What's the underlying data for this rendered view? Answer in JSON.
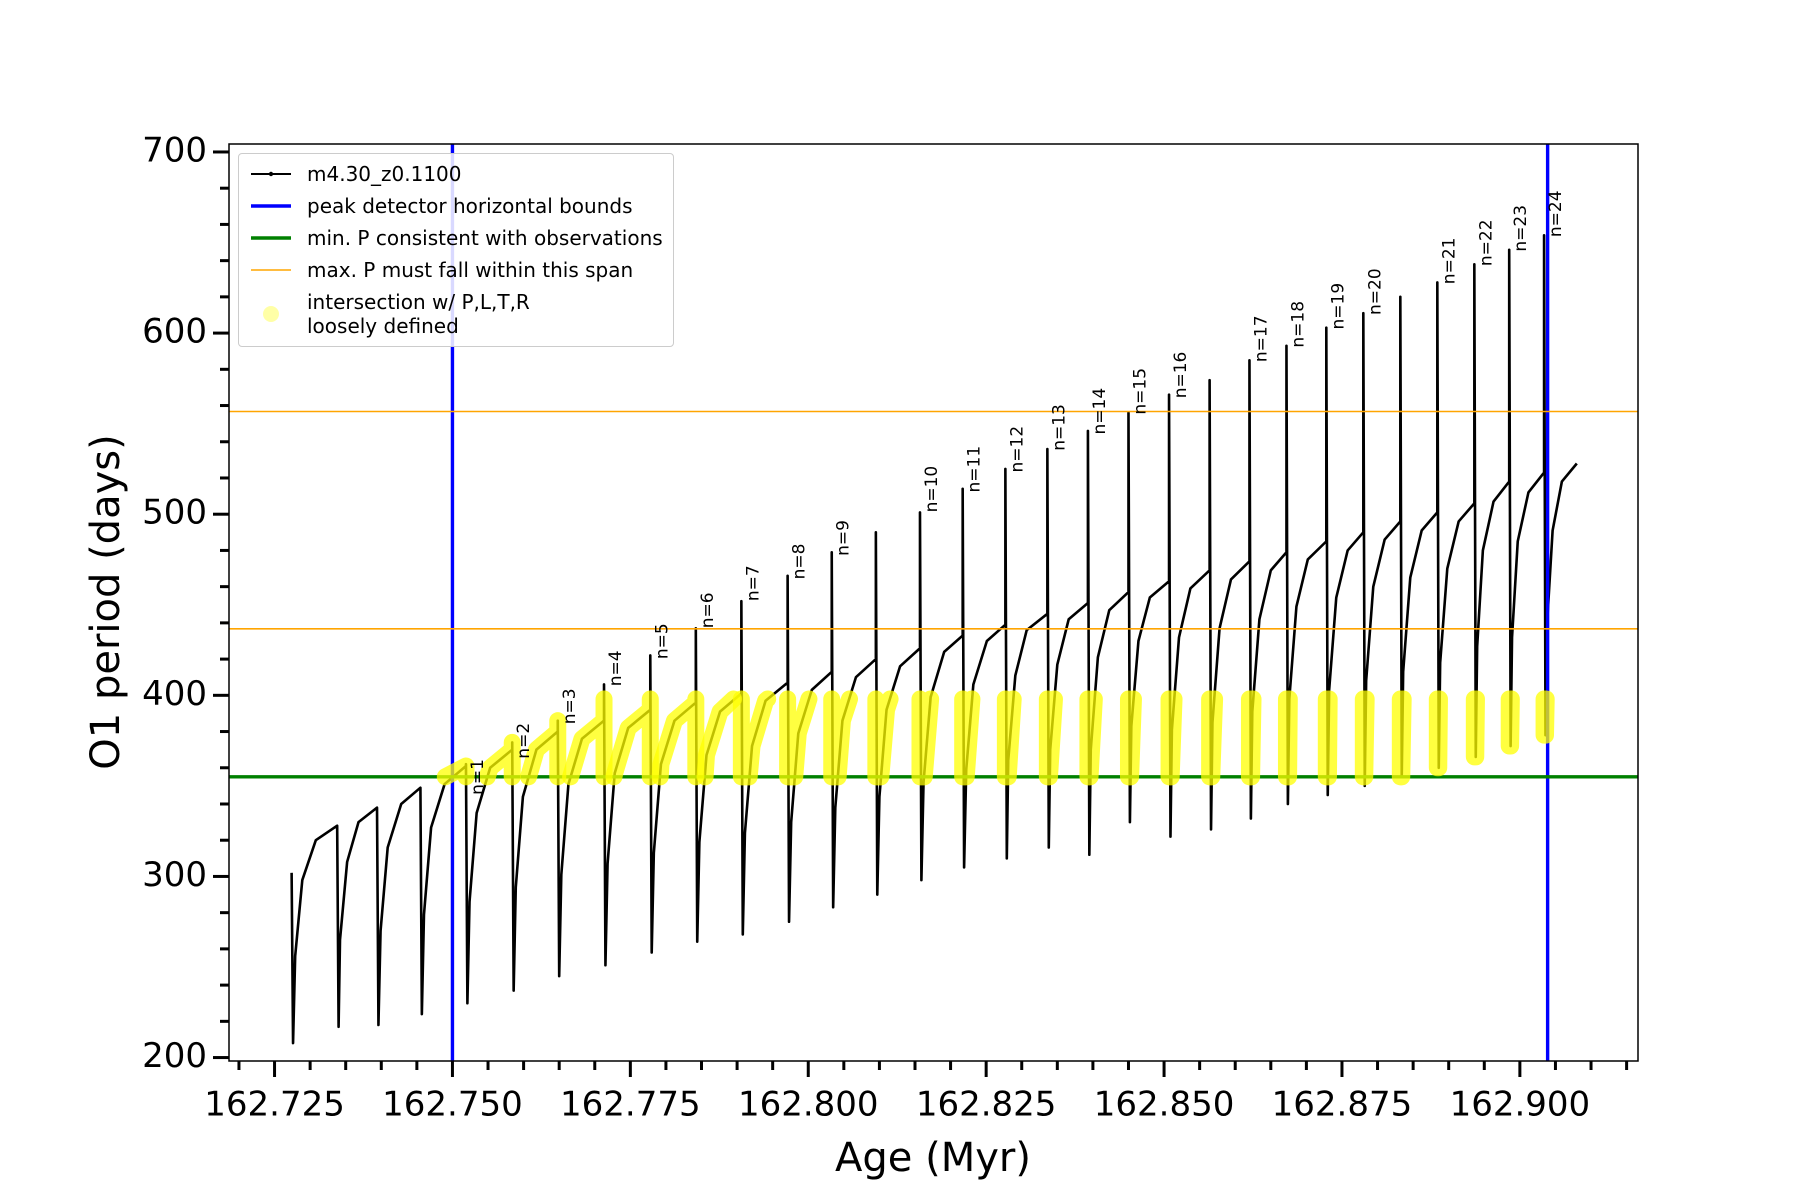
{
  "chart_data": {
    "type": "line",
    "xlabel": "Age (Myr)",
    "ylabel": "O1 period (days)",
    "xlim": [
      162.7186,
      162.9166
    ],
    "ylim": [
      198.1,
      704.4
    ],
    "xticks": [
      162.725,
      {
        "value": 162.75,
        "label": "162.750"
      },
      162.775,
      {
        "value": 162.8,
        "label": "162.800"
      },
      162.825,
      {
        "value": 162.85,
        "label": "162.850"
      },
      162.875,
      {
        "value": 162.9,
        "label": "162.900"
      }
    ],
    "xticks_minor": [
      162.72,
      162.73,
      162.735,
      162.74,
      162.745,
      162.755,
      162.76,
      162.765,
      162.77,
      162.78,
      162.785,
      162.79,
      162.795,
      162.805,
      162.81,
      162.815,
      162.82,
      162.83,
      162.835,
      162.84,
      162.845,
      162.855,
      162.86,
      162.865,
      162.87,
      162.88,
      162.885,
      162.89,
      162.895,
      162.905,
      162.91,
      162.915
    ],
    "yticks": [
      200,
      300,
      400,
      500,
      600,
      700
    ],
    "yticks_minor": [
      220,
      240,
      260,
      280,
      320,
      340,
      360,
      380,
      420,
      440,
      460,
      480,
      520,
      540,
      560,
      580,
      620,
      640,
      660,
      680
    ],
    "legend": "upper left",
    "series": [
      {
        "name": "m4.30_z0.1100",
        "color": "#000000",
        "marker": ".",
        "x": [
          162.7274,
          162.7276,
          162.7279,
          162.7289,
          162.7308,
          162.7338,
          162.7338,
          162.734,
          162.7342,
          162.7352,
          162.7368,
          162.7394,
          162.7394,
          162.7396,
          162.7399,
          162.7409,
          162.7428,
          162.7455,
          162.7455,
          162.7457,
          162.746,
          162.747,
          162.7489,
          162.7519,
          162.7519,
          162.7521,
          162.7524,
          162.7534,
          162.7553,
          162.7584,
          162.7584,
          162.7586,
          162.7589,
          162.7599,
          162.7618,
          162.7648,
          162.7648,
          162.765,
          162.7653,
          162.7663,
          162.7682,
          162.7713,
          162.7713,
          162.7715,
          162.7718,
          162.7728,
          162.7747,
          162.7778,
          162.7778,
          162.778,
          162.7783,
          162.7793,
          162.7812,
          162.7842,
          162.7842,
          162.7844,
          162.7847,
          162.7857,
          162.7876,
          162.7906,
          162.7906,
          162.7908,
          162.7911,
          162.7921,
          162.794,
          162.7971,
          162.7971,
          162.7973,
          162.7976,
          162.7986,
          162.8005,
          162.8033,
          162.8033,
          162.8035,
          162.8038,
          162.8048,
          162.8067,
          162.8095,
          162.8095,
          162.8097,
          162.81,
          162.811,
          162.8129,
          162.8157,
          162.8157,
          162.8159,
          162.8162,
          162.8172,
          162.8191,
          162.8217,
          162.8217,
          162.8219,
          162.8222,
          162.8232,
          162.8251,
          162.8277,
          162.8277,
          162.8279,
          162.8281,
          162.8291,
          162.8307,
          162.8336,
          162.8336,
          162.8338,
          162.834,
          162.835,
          162.8366,
          162.8393,
          162.8393,
          162.8395,
          162.8397,
          162.8407,
          162.8423,
          162.845,
          162.845,
          162.8452,
          162.8454,
          162.8464,
          162.848,
          162.8507,
          162.8507,
          162.8509,
          162.8511,
          162.8521,
          162.8537,
          162.8564,
          162.8564,
          162.8566,
          162.8568,
          162.8578,
          162.8594,
          162.862,
          162.862,
          162.8622,
          162.8624,
          162.8634,
          162.865,
          162.8672,
          162.8672,
          162.8674,
          162.8676,
          162.8686,
          162.8702,
          162.8728,
          162.8728,
          162.873,
          162.8732,
          162.8742,
          162.8758,
          162.878,
          162.878,
          162.8782,
          162.8784,
          162.8794,
          162.881,
          162.8832,
          162.8832,
          162.8834,
          162.8836,
          162.8846,
          162.8862,
          162.8884,
          162.8884,
          162.8886,
          162.8888,
          162.8898,
          162.8914,
          162.8936,
          162.8936,
          162.8938,
          162.894,
          162.8948,
          162.8963,
          162.8985,
          162.8985,
          162.8987,
          162.8989,
          162.8997,
          162.9012,
          162.9034,
          162.9034,
          162.9036,
          162.9038,
          162.9046,
          162.9059,
          162.908
        ],
        "values": [
          302,
          208,
          256,
          298,
          320,
          328,
          328,
          217,
          265,
          308,
          330,
          338,
          338,
          218,
          270,
          316,
          340,
          349,
          349,
          224,
          279,
          327,
          351,
          361,
          362,
          230,
          286,
          335,
          360,
          370,
          374,
          237,
          294,
          344,
          370,
          380,
          386,
          245,
          301,
          351,
          376,
          386,
          406,
          251,
          307,
          357,
          382,
          392,
          422,
          258,
          313,
          362,
          386,
          396,
          437,
          264,
          319,
          367,
          391,
          401,
          452,
          268,
          324,
          372,
          397,
          407,
          466,
          275,
          330,
          379,
          403,
          413,
          479,
          283,
          338,
          386,
          410,
          420,
          490,
          290,
          344,
          392,
          416,
          426,
          501,
          298,
          352,
          399,
          424,
          433,
          514,
          305,
          359,
          406,
          430,
          439,
          525,
          310,
          364,
          411,
          436,
          445,
          536,
          316,
          370,
          417,
          442,
          451,
          546,
          312,
          370,
          421,
          447,
          457,
          556,
          330,
          383,
          430,
          454,
          463,
          566,
          322,
          381,
          432,
          459,
          469,
          574,
          326,
          385,
          437,
          464,
          474,
          585,
          332,
          391,
          442,
          469,
          479,
          593,
          340,
          398,
          449,
          475,
          485,
          603,
          345,
          403,
          454,
          480,
          490,
          611,
          350,
          408,
          460,
          486,
          496,
          620,
          355,
          413,
          465,
          491,
          501,
          628,
          360,
          418,
          470,
          496,
          506,
          638,
          366,
          427,
          480,
          507,
          518,
          646,
          372,
          432,
          485,
          512,
          523,
          654,
          378,
          438,
          491,
          518,
          528
        ]
      },
      {
        "name": "intersection w/ P,L,T,R\nloosely defined",
        "color": "#ffff00",
        "marker": "o",
        "x": [
          162.749,
          162.7519,
          162.7519,
          null,
          162.7549,
          162.7553,
          162.7584,
          162.7584,
          162.7584,
          null,
          162.7607,
          162.7618,
          162.7648,
          162.7648,
          162.7648,
          null,
          162.7666,
          162.7682,
          162.7713,
          162.7713,
          162.7713,
          null,
          162.7727,
          162.7728,
          162.7747,
          162.7778,
          162.7778,
          162.7778,
          null,
          162.7792,
          162.7793,
          162.7812,
          162.7842,
          162.7842,
          162.7842,
          null,
          162.7855,
          162.7857,
          162.7876,
          162.7895,
          null,
          162.7906,
          162.7906,
          162.7917,
          162.7921,
          162.794,
          162.7943,
          null,
          162.7971,
          162.7971,
          162.7981,
          162.7986,
          162.8001,
          null,
          162.8033,
          162.8033,
          162.8042,
          162.8048,
          162.8058,
          null,
          162.8095,
          162.8095,
          162.8102,
          162.811,
          162.8115,
          null,
          162.8157,
          162.8157,
          162.8163,
          162.8172,
          null,
          162.8217,
          162.8217,
          162.8222,
          162.823,
          null,
          162.8277,
          162.8277,
          162.8281,
          162.8288,
          null,
          162.8336,
          162.8336,
          162.8339,
          162.8346,
          null,
          162.8393,
          162.8393,
          162.8396,
          162.8402,
          null,
          162.845,
          162.845,
          162.8453,
          162.8457,
          null,
          162.8507,
          162.8507,
          162.851,
          162.8514,
          null,
          162.8564,
          162.8564,
          162.8567,
          162.8571,
          null,
          162.862,
          162.862,
          162.8623,
          162.8625,
          null,
          162.8672,
          162.8672,
          162.8675,
          162.8676,
          null,
          162.8728,
          162.8728,
          162.8731,
          162.8732,
          null,
          162.878,
          162.878,
          162.8782,
          162.8784,
          null,
          162.8832,
          162.8832,
          162.8834,
          162.8836,
          null,
          162.8884,
          162.8884,
          162.8886,
          162.8887,
          null,
          162.8936,
          162.8936,
          162.8938,
          162.8939,
          null,
          162.8985,
          162.8985,
          162.8987,
          162.8988,
          null,
          162.9034,
          162.9034,
          162.9036,
          162.9037
        ],
        "values": [
          355,
          361,
          355,
          null,
          355,
          360,
          370,
          374,
          355,
          null,
          355,
          370,
          380,
          386,
          355,
          null,
          355,
          376,
          386,
          398,
          355,
          null,
          355,
          357,
          382,
          392,
          398,
          355,
          null,
          355,
          362,
          386,
          396,
          398,
          355,
          null,
          355,
          367,
          391,
          398,
          null,
          398,
          355,
          355,
          372,
          397,
          398,
          null,
          398,
          355,
          355,
          379,
          398,
          null,
          398,
          355,
          355,
          386,
          398,
          null,
          398,
          355,
          355,
          392,
          398,
          null,
          398,
          355,
          355,
          398,
          null,
          398,
          355,
          355,
          398,
          null,
          398,
          355,
          355,
          398,
          null,
          398,
          355,
          355,
          398,
          null,
          398,
          355,
          355,
          398,
          null,
          398,
          355,
          355,
          398,
          null,
          398,
          355,
          355,
          398,
          null,
          398,
          355,
          355,
          398,
          null,
          398,
          355,
          355,
          398,
          null,
          398,
          355,
          355,
          398,
          null,
          398,
          355,
          355,
          398,
          null,
          398,
          355,
          355,
          398,
          null,
          398,
          355,
          355,
          398,
          null,
          398,
          360,
          360,
          398,
          null,
          398,
          366,
          366,
          398,
          null,
          398,
          372,
          372,
          398,
          null,
          398,
          378,
          378,
          398
        ]
      }
    ],
    "reference_lines": [
      {
        "name": "peak detector horizontal bounds",
        "color": "#0000ff",
        "orientation": "vertical",
        "values": [
          162.75,
          162.9039
        ]
      },
      {
        "name": "min. P consistent with observations",
        "color": "#008000",
        "orientation": "horizontal",
        "values": [
          355
        ]
      },
      {
        "name": "max. P must fall within this span",
        "color": "#ffa500",
        "orientation": "horizontal",
        "values": [
          436.7,
          556.7
        ]
      }
    ],
    "annotations": [
      {
        "text": "n=1",
        "x": 162.7519,
        "y": 345
      },
      {
        "text": "n=2",
        "x": 162.7584,
        "y": 365
      },
      {
        "text": "n=3",
        "x": 162.7648,
        "y": 384
      },
      {
        "text": "n=4",
        "x": 162.7713,
        "y": 405
      },
      {
        "text": "n=5",
        "x": 162.7778,
        "y": 420
      },
      {
        "text": "n=6",
        "x": 162.7842,
        "y": 437
      },
      {
        "text": "n=7",
        "x": 162.7906,
        "y": 452
      },
      {
        "text": "n=8",
        "x": 162.7971,
        "y": 464
      },
      {
        "text": "n=9",
        "x": 162.8033,
        "y": 477
      },
      {
        "text": "n=10",
        "x": 162.8157,
        "y": 501
      },
      {
        "text": "n=11",
        "x": 162.8217,
        "y": 512
      },
      {
        "text": "n=12",
        "x": 162.8277,
        "y": 523
      },
      {
        "text": "n=13",
        "x": 162.8336,
        "y": 535
      },
      {
        "text": "n=14",
        "x": 162.8393,
        "y": 544
      },
      {
        "text": "n=15",
        "x": 162.845,
        "y": 555
      },
      {
        "text": "n=16",
        "x": 162.8507,
        "y": 564
      },
      {
        "text": "n=17",
        "x": 162.862,
        "y": 584
      },
      {
        "text": "n=18",
        "x": 162.8672,
        "y": 592
      },
      {
        "text": "n=19",
        "x": 162.8728,
        "y": 602
      },
      {
        "text": "n=20",
        "x": 162.878,
        "y": 610
      },
      {
        "text": "n=21",
        "x": 162.8884,
        "y": 627
      },
      {
        "text": "n=22",
        "x": 162.8936,
        "y": 637
      },
      {
        "text": "n=23",
        "x": 162.8985,
        "y": 645
      },
      {
        "text": "n=24",
        "x": 162.9034,
        "y": 653
      }
    ]
  }
}
